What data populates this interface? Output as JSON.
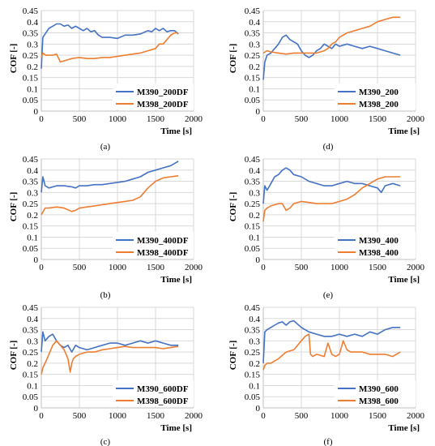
{
  "figure": {
    "series_colors": [
      "#4472C4",
      "#ED7D31"
    ],
    "panels": [
      {
        "caption": "(a)",
        "chart_data": {
          "type": "line",
          "ylabel": "COF [-]",
          "xlabel": "Time [s]",
          "xlim": [
            0,
            2000
          ],
          "ylim": [
            0,
            0.45
          ],
          "x_ticks": [
            0,
            500,
            1000,
            1500,
            2000
          ],
          "y_ticks": [
            0,
            0.05,
            0.1,
            0.15,
            0.2,
            0.25,
            0.3,
            0.35,
            0.4,
            0.45
          ],
          "grid": true,
          "legend_position": "bottom-right",
          "series": [
            {
              "name": "M390_200DF",
              "color": "#4472C4",
              "x": [
                0,
                20,
                60,
                100,
                150,
                200,
                250,
                300,
                350,
                400,
                450,
                500,
                550,
                600,
                650,
                700,
                750,
                800,
                900,
                1000,
                1100,
                1200,
                1300,
                1400,
                1450,
                1500,
                1550,
                1600,
                1650,
                1700,
                1750,
                1800
              ],
              "y": [
                0.19,
                0.33,
                0.35,
                0.37,
                0.38,
                0.39,
                0.39,
                0.38,
                0.385,
                0.37,
                0.38,
                0.37,
                0.36,
                0.37,
                0.355,
                0.36,
                0.34,
                0.33,
                0.33,
                0.325,
                0.34,
                0.34,
                0.345,
                0.36,
                0.355,
                0.37,
                0.36,
                0.37,
                0.355,
                0.36,
                0.36,
                0.345
              ]
            },
            {
              "name": "M398_200DF",
              "color": "#ED7D31",
              "x": [
                0,
                20,
                60,
                100,
                150,
                200,
                250,
                300,
                350,
                400,
                500,
                600,
                700,
                800,
                900,
                1000,
                1100,
                1200,
                1300,
                1400,
                1500,
                1550,
                1600,
                1650,
                1700,
                1750,
                1800
              ],
              "y": [
                0.24,
                0.26,
                0.25,
                0.25,
                0.25,
                0.255,
                0.22,
                0.225,
                0.23,
                0.235,
                0.24,
                0.235,
                0.235,
                0.24,
                0.24,
                0.245,
                0.25,
                0.255,
                0.26,
                0.27,
                0.28,
                0.3,
                0.3,
                0.32,
                0.34,
                0.35,
                0.35
              ]
            }
          ]
        }
      },
      {
        "caption": "(d)",
        "chart_data": {
          "type": "line",
          "ylabel": "COF [-]",
          "xlabel": "Time [s]",
          "xlim": [
            0,
            2000
          ],
          "ylim": [
            0,
            0.45
          ],
          "x_ticks": [
            0,
            500,
            1000,
            1500,
            2000
          ],
          "y_ticks": [
            0,
            0.05,
            0.1,
            0.15,
            0.2,
            0.25,
            0.3,
            0.35,
            0.4,
            0.45
          ],
          "grid": true,
          "legend_position": "bottom-right",
          "series": [
            {
              "name": "M390_200",
              "color": "#4472C4",
              "x": [
                0,
                20,
                50,
                100,
                150,
                200,
                250,
                300,
                350,
                400,
                450,
                500,
                550,
                600,
                650,
                700,
                750,
                800,
                850,
                900,
                950,
                1000,
                1100,
                1200,
                1300,
                1400,
                1500,
                1600,
                1700,
                1800
              ],
              "y": [
                0.14,
                0.22,
                0.25,
                0.26,
                0.28,
                0.3,
                0.33,
                0.34,
                0.32,
                0.31,
                0.3,
                0.27,
                0.25,
                0.24,
                0.25,
                0.27,
                0.28,
                0.3,
                0.29,
                0.28,
                0.3,
                0.29,
                0.3,
                0.29,
                0.28,
                0.29,
                0.28,
                0.27,
                0.26,
                0.25
              ]
            },
            {
              "name": "M398_200",
              "color": "#ED7D31",
              "x": [
                0,
                50,
                100,
                200,
                300,
                400,
                500,
                600,
                700,
                800,
                850,
                900,
                950,
                1000,
                1050,
                1100,
                1200,
                1300,
                1400,
                1500,
                1600,
                1700,
                1800
              ],
              "y": [
                0.26,
                0.27,
                0.265,
                0.26,
                0.255,
                0.26,
                0.26,
                0.26,
                0.26,
                0.27,
                0.28,
                0.3,
                0.31,
                0.33,
                0.34,
                0.35,
                0.36,
                0.37,
                0.38,
                0.4,
                0.41,
                0.42,
                0.42
              ]
            }
          ]
        }
      },
      {
        "caption": "(b)",
        "chart_data": {
          "type": "line",
          "ylabel": "COF [-]",
          "xlabel": "Time [s]",
          "xlim": [
            0,
            2000
          ],
          "ylim": [
            0,
            0.45
          ],
          "x_ticks": [
            0,
            500,
            1000,
            1500,
            2000
          ],
          "y_ticks": [
            0,
            0.05,
            0.1,
            0.15,
            0.2,
            0.25,
            0.3,
            0.35,
            0.4,
            0.45
          ],
          "grid": true,
          "legend_position": "bottom-right",
          "series": [
            {
              "name": "M390_400DF",
              "color": "#4472C4",
              "x": [
                0,
                20,
                50,
                100,
                200,
                300,
                400,
                450,
                500,
                600,
                700,
                800,
                900,
                1000,
                1100,
                1200,
                1300,
                1400,
                1500,
                1600,
                1700,
                1800
              ],
              "y": [
                0.3,
                0.37,
                0.33,
                0.32,
                0.33,
                0.33,
                0.325,
                0.32,
                0.33,
                0.33,
                0.335,
                0.335,
                0.34,
                0.345,
                0.35,
                0.36,
                0.37,
                0.39,
                0.4,
                0.41,
                0.42,
                0.44
              ]
            },
            {
              "name": "M398_400DF",
              "color": "#ED7D31",
              "x": [
                0,
                50,
                100,
                200,
                300,
                400,
                450,
                500,
                600,
                700,
                800,
                900,
                1000,
                1100,
                1200,
                1300,
                1350,
                1400,
                1500,
                1600,
                1700,
                1800
              ],
              "y": [
                0.2,
                0.23,
                0.23,
                0.235,
                0.23,
                0.215,
                0.22,
                0.23,
                0.235,
                0.24,
                0.245,
                0.25,
                0.255,
                0.26,
                0.265,
                0.28,
                0.3,
                0.32,
                0.35,
                0.365,
                0.37,
                0.375
              ]
            }
          ]
        }
      },
      {
        "caption": "(e)",
        "chart_data": {
          "type": "line",
          "ylabel": "COF [-]",
          "xlabel": "Time [s]",
          "xlim": [
            0,
            2000
          ],
          "ylim": [
            0,
            0.45
          ],
          "x_ticks": [
            0,
            500,
            1000,
            1500,
            2000
          ],
          "y_ticks": [
            0,
            0.05,
            0.1,
            0.15,
            0.2,
            0.25,
            0.3,
            0.35,
            0.4,
            0.45
          ],
          "grid": true,
          "legend_position": "bottom-right",
          "series": [
            {
              "name": "M390_400",
              "color": "#4472C4",
              "x": [
                0,
                20,
                50,
                100,
                150,
                200,
                250,
                300,
                350,
                400,
                500,
                600,
                700,
                800,
                900,
                1000,
                1100,
                1200,
                1300,
                1400,
                1500,
                1550,
                1600,
                1700,
                1800
              ],
              "y": [
                0.25,
                0.33,
                0.31,
                0.34,
                0.37,
                0.38,
                0.4,
                0.41,
                0.4,
                0.38,
                0.37,
                0.35,
                0.34,
                0.33,
                0.33,
                0.34,
                0.35,
                0.34,
                0.34,
                0.33,
                0.32,
                0.3,
                0.33,
                0.34,
                0.33
              ]
            },
            {
              "name": "M398_400",
              "color": "#ED7D31",
              "x": [
                0,
                20,
                50,
                100,
                150,
                200,
                250,
                300,
                350,
                400,
                500,
                600,
                700,
                800,
                900,
                1000,
                1100,
                1200,
                1300,
                1400,
                1500,
                1600,
                1700,
                1800
              ],
              "y": [
                0.17,
                0.22,
                0.23,
                0.24,
                0.245,
                0.25,
                0.25,
                0.22,
                0.23,
                0.25,
                0.26,
                0.255,
                0.25,
                0.25,
                0.25,
                0.26,
                0.27,
                0.29,
                0.32,
                0.34,
                0.36,
                0.37,
                0.37,
                0.37
              ]
            }
          ]
        }
      },
      {
        "caption": "(c)",
        "chart_data": {
          "type": "line",
          "ylabel": "COF [-]",
          "xlabel": "Time [s]",
          "xlim": [
            0,
            2000
          ],
          "ylim": [
            0,
            0.45
          ],
          "x_ticks": [
            0,
            500,
            1000,
            1500,
            2000
          ],
          "y_ticks": [
            0,
            0.05,
            0.1,
            0.15,
            0.2,
            0.25,
            0.3,
            0.35,
            0.4,
            0.45
          ],
          "grid": true,
          "legend_position": "bottom-right",
          "series": [
            {
              "name": "M390_600DF",
              "color": "#4472C4",
              "x": [
                0,
                20,
                50,
                100,
                150,
                200,
                250,
                300,
                350,
                400,
                450,
                500,
                600,
                700,
                800,
                900,
                1000,
                1100,
                1200,
                1300,
                1400,
                1500,
                1600,
                1700,
                1800
              ],
              "y": [
                0.25,
                0.34,
                0.3,
                0.32,
                0.33,
                0.3,
                0.28,
                0.27,
                0.28,
                0.25,
                0.28,
                0.27,
                0.26,
                0.27,
                0.28,
                0.29,
                0.29,
                0.28,
                0.29,
                0.3,
                0.29,
                0.3,
                0.29,
                0.28,
                0.28
              ]
            },
            {
              "name": "M398_600DF",
              "color": "#ED7D31",
              "x": [
                0,
                20,
                50,
                100,
                150,
                200,
                250,
                300,
                350,
                380,
                400,
                420,
                450,
                500,
                600,
                700,
                800,
                900,
                1000,
                1100,
                1200,
                1300,
                1400,
                1500,
                1600,
                1700,
                1800
              ],
              "y": [
                0.15,
                0.18,
                0.2,
                0.24,
                0.28,
                0.3,
                0.28,
                0.26,
                0.22,
                0.16,
                0.2,
                0.22,
                0.23,
                0.24,
                0.25,
                0.25,
                0.26,
                0.265,
                0.27,
                0.275,
                0.27,
                0.27,
                0.27,
                0.27,
                0.265,
                0.27,
                0.275
              ]
            }
          ]
        }
      },
      {
        "caption": "(f)",
        "chart_data": {
          "type": "line",
          "ylabel": "COF [-]",
          "xlabel": "Time [s]",
          "xlim": [
            0,
            2000
          ],
          "ylim": [
            0,
            0.45
          ],
          "x_ticks": [
            0,
            500,
            1000,
            1500,
            2000
          ],
          "y_ticks": [
            0,
            0.05,
            0.1,
            0.15,
            0.2,
            0.25,
            0.3,
            0.35,
            0.4,
            0.45
          ],
          "grid": true,
          "legend_position": "bottom-right",
          "series": [
            {
              "name": "M390_600",
              "color": "#4472C4",
              "x": [
                0,
                20,
                50,
                100,
                150,
                200,
                250,
                300,
                350,
                400,
                500,
                600,
                700,
                800,
                900,
                1000,
                1100,
                1200,
                1300,
                1400,
                1500,
                1600,
                1700,
                1800
              ],
              "y": [
                0.2,
                0.34,
                0.35,
                0.36,
                0.37,
                0.38,
                0.385,
                0.37,
                0.385,
                0.39,
                0.36,
                0.34,
                0.33,
                0.32,
                0.32,
                0.33,
                0.32,
                0.33,
                0.32,
                0.34,
                0.33,
                0.35,
                0.36,
                0.36
              ]
            },
            {
              "name": "M398_600",
              "color": "#ED7D31",
              "x": [
                0,
                20,
                50,
                100,
                150,
                200,
                300,
                400,
                500,
                550,
                600,
                620,
                650,
                700,
                800,
                850,
                900,
                950,
                1000,
                1050,
                1100,
                1150,
                1200,
                1300,
                1400,
                1500,
                1600,
                1700,
                1800
              ],
              "y": [
                0.17,
                0.19,
                0.2,
                0.2,
                0.21,
                0.22,
                0.25,
                0.26,
                0.3,
                0.32,
                0.33,
                0.24,
                0.23,
                0.24,
                0.23,
                0.29,
                0.24,
                0.23,
                0.24,
                0.3,
                0.26,
                0.25,
                0.25,
                0.25,
                0.24,
                0.24,
                0.24,
                0.23,
                0.25
              ]
            }
          ]
        }
      }
    ]
  }
}
